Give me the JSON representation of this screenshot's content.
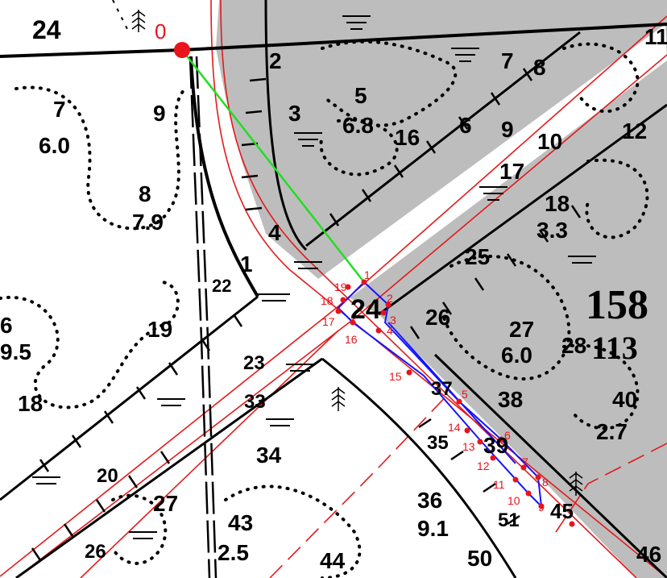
{
  "colors": {
    "forest_gray": "#bdbdbd",
    "road_red": "#e31a1c",
    "boundary_black": "#000000",
    "plot_blue": "#1414ff",
    "bearing_green": "#22dd22",
    "point_red": "#e8131b"
  },
  "icons": [
    "conifer-tree-icon",
    "marsh-hatch-icon"
  ],
  "start_point_label": "0",
  "compartment_labels": [
    {
      "id": "24a",
      "text": "24"
    },
    {
      "id": "7",
      "text": "7"
    },
    {
      "id": "7-sub",
      "text": "6.0"
    },
    {
      "id": "9-left",
      "text": "9"
    },
    {
      "id": "8",
      "text": "8"
    },
    {
      "id": "8-sub",
      "text": "7.9"
    },
    {
      "id": "2",
      "text": "2"
    },
    {
      "id": "3",
      "text": "3"
    },
    {
      "id": "5",
      "text": "5"
    },
    {
      "id": "5-sub",
      "text": "6.8"
    },
    {
      "id": "16",
      "text": "16"
    },
    {
      "id": "6",
      "text": "6"
    },
    {
      "id": "9-right",
      "text": "9"
    },
    {
      "id": "7-right",
      "text": "7"
    },
    {
      "id": "8-right",
      "text": "8"
    },
    {
      "id": "10",
      "text": "10"
    },
    {
      "id": "11",
      "text": "11"
    },
    {
      "id": "12",
      "text": "12"
    },
    {
      "id": "17",
      "text": "17"
    },
    {
      "id": "18",
      "text": "18"
    },
    {
      "id": "18-sub",
      "text": "3.3"
    },
    {
      "id": "4",
      "text": "4"
    },
    {
      "id": "1",
      "text": "1"
    },
    {
      "id": "22",
      "text": "22"
    },
    {
      "id": "25",
      "text": "25"
    },
    {
      "id": "24b",
      "text": "24"
    },
    {
      "id": "26",
      "text": "26"
    },
    {
      "id": "27",
      "text": "27"
    },
    {
      "id": "27-sub",
      "text": "6.0"
    },
    {
      "id": "28",
      "text": "28"
    },
    {
      "id": "6-left",
      "text": "6"
    },
    {
      "id": "6-left-sub",
      "text": "9.5"
    },
    {
      "id": "19",
      "text": "19"
    },
    {
      "id": "18-left",
      "text": "18"
    },
    {
      "id": "23",
      "text": "23"
    },
    {
      "id": "33",
      "text": "33"
    },
    {
      "id": "37",
      "text": "37"
    },
    {
      "id": "38",
      "text": "38"
    },
    {
      "id": "39",
      "text": "39"
    },
    {
      "id": "40",
      "text": "40"
    },
    {
      "id": "40-sub",
      "text": "2.7"
    },
    {
      "id": "34",
      "text": "34"
    },
    {
      "id": "35",
      "text": "35"
    },
    {
      "id": "20",
      "text": "20"
    },
    {
      "id": "27-low",
      "text": "27"
    },
    {
      "id": "43",
      "text": "43"
    },
    {
      "id": "43-sub",
      "text": "2.5"
    },
    {
      "id": "36",
      "text": "36"
    },
    {
      "id": "36-sub",
      "text": "9.1"
    },
    {
      "id": "51",
      "text": "51"
    },
    {
      "id": "45",
      "text": "45"
    },
    {
      "id": "26-low",
      "text": "26"
    },
    {
      "id": "44",
      "text": "44"
    },
    {
      "id": "50",
      "text": "50"
    },
    {
      "id": "46",
      "text": "46"
    }
  ],
  "quarter_labels": [
    {
      "id": "158",
      "text": "158"
    },
    {
      "id": "113",
      "text": "113"
    }
  ],
  "survey_points": [
    "1",
    "2",
    "3",
    "4",
    "5",
    "6",
    "7",
    "8",
    "9",
    "10",
    "11",
    "12",
    "13",
    "14",
    "15",
    "16",
    "17",
    "18",
    "19"
  ]
}
